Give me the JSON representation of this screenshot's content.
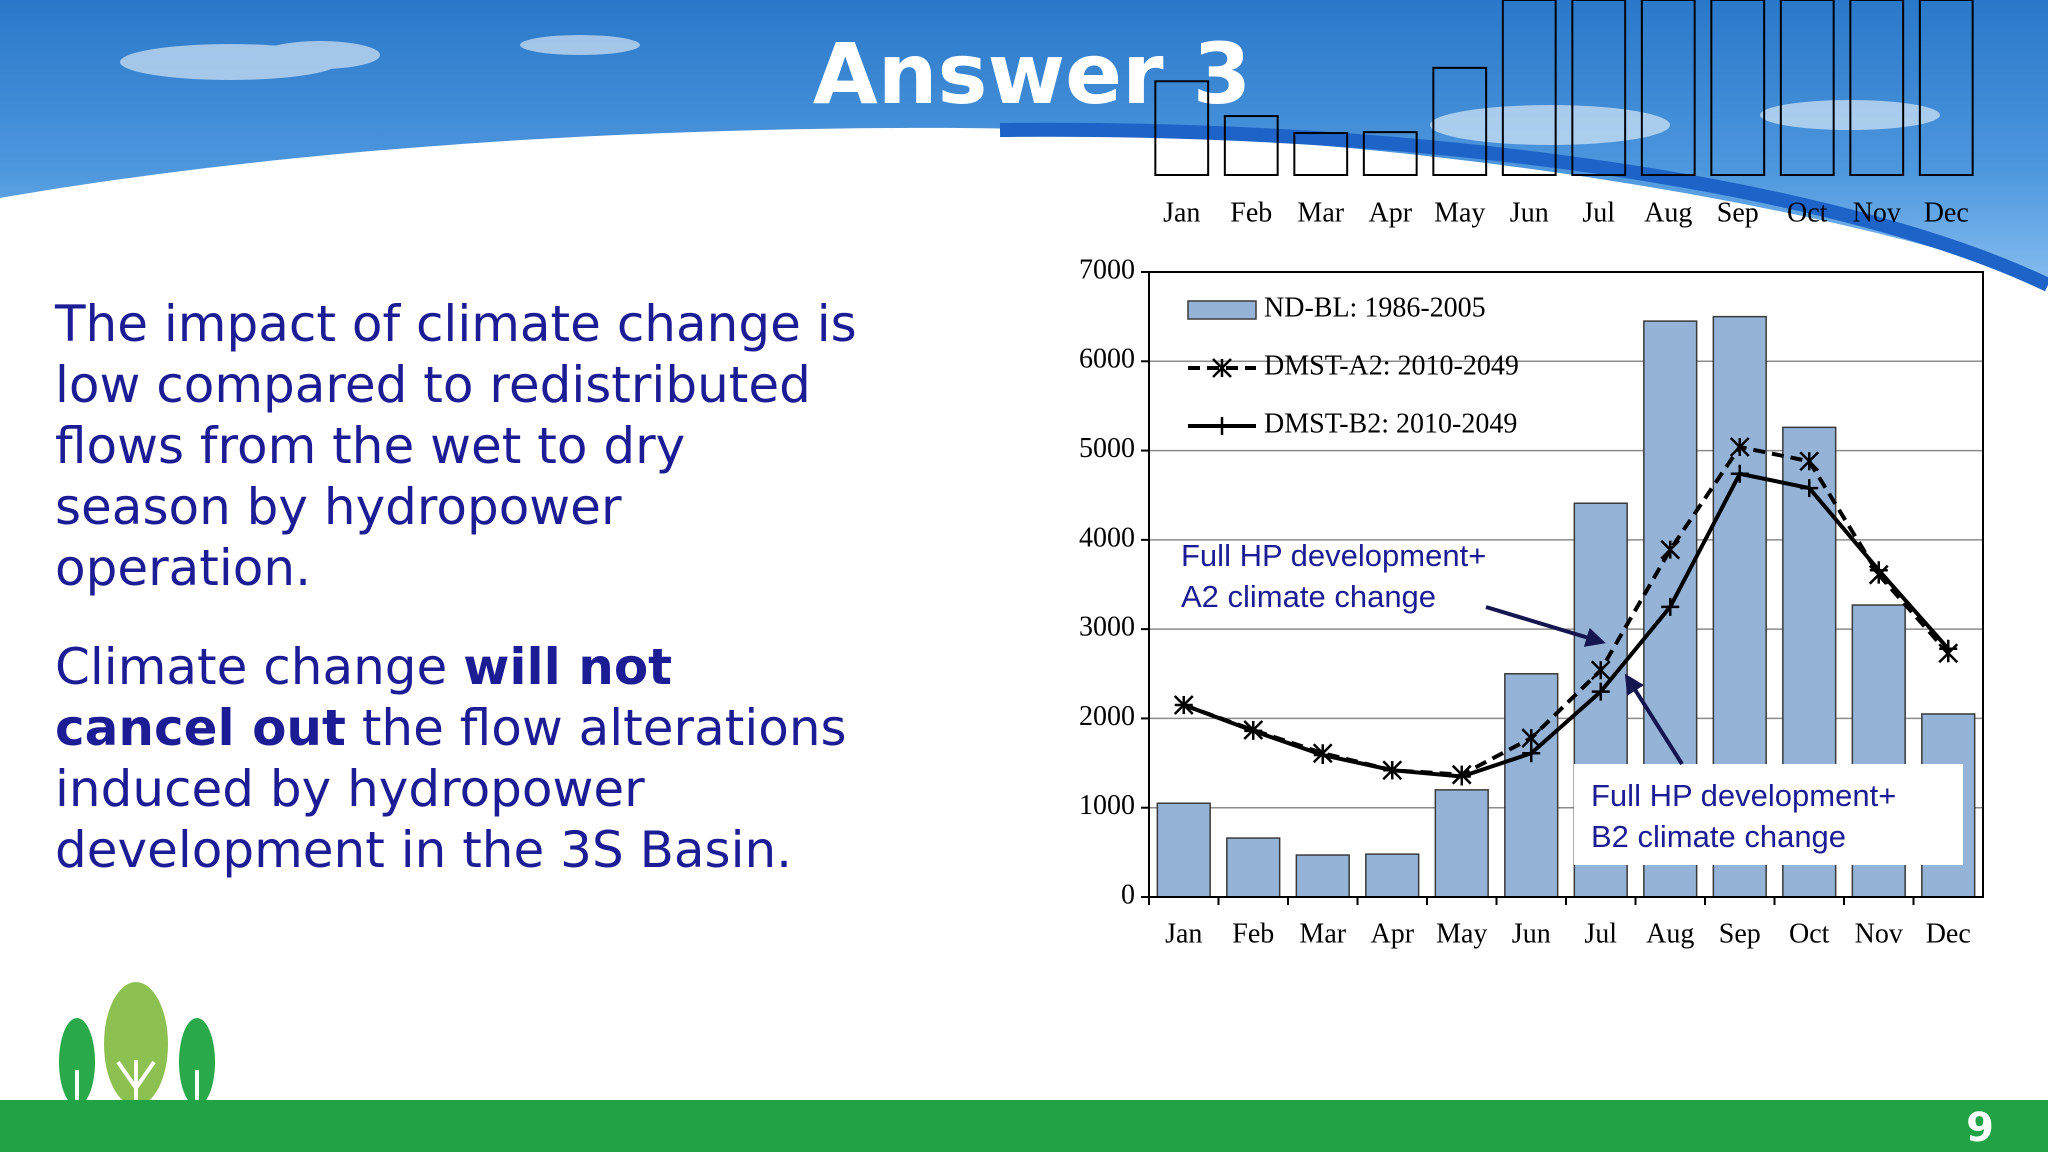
{
  "slide": {
    "title": "Answer 3",
    "paragraphs": [
      {
        "lines": [
          [
            {
              "text": "The impact of climate change is"
            }
          ],
          [
            {
              "text": "low compared to redistributed"
            }
          ],
          [
            {
              "text": "flows from the wet to dry"
            }
          ],
          [
            {
              "text": "season by hydropower"
            }
          ],
          [
            {
              "text": "operation."
            }
          ]
        ]
      },
      {
        "lines": [
          [
            {
              "text": "Climate change "
            },
            {
              "text": "will not",
              "bold": true
            }
          ],
          [
            {
              "text": "cancel out",
              "bold": true
            },
            {
              "text": " the flow alterations"
            }
          ],
          [
            {
              "text": "induced by hydropower"
            }
          ],
          [
            {
              "text": "development in the 3S Basin."
            }
          ]
        ]
      }
    ],
    "page_number": 9
  },
  "chart_data": {
    "type": "combo",
    "categories": [
      "Jan",
      "Feb",
      "Mar",
      "Apr",
      "May",
      "Jun",
      "Jul",
      "Aug",
      "Sep",
      "Oct",
      "Nov",
      "Dec"
    ],
    "series": [
      {
        "name": "ND-BL: 1986-2005",
        "type": "bar",
        "color": "#95b3d7",
        "values": [
          1050,
          660,
          470,
          480,
          1200,
          2500,
          4410,
          6450,
          6500,
          5260,
          3270,
          2050
        ]
      },
      {
        "name": "DMST-A2: 2010-2049",
        "type": "line",
        "dash": true,
        "marker": "x",
        "color": "#000000",
        "values": [
          2150,
          1870,
          1610,
          1420,
          1370,
          1780,
          2540,
          3890,
          5040,
          4880,
          3610,
          2730
        ]
      },
      {
        "name": "DMST-B2: 2010-2049",
        "type": "line",
        "dash": false,
        "marker": "+",
        "color": "#000000",
        "values": [
          2150,
          1860,
          1590,
          1420,
          1350,
          1610,
          2300,
          3250,
          4740,
          4580,
          3660,
          2780
        ]
      }
    ],
    "ylim": [
      0,
      7000
    ],
    "yticks": [
      0,
      1000,
      2000,
      3000,
      4000,
      5000,
      6000,
      7000
    ],
    "grid": true,
    "legend": "top-left",
    "annotations": [
      {
        "lines": [
          "Full HP development+",
          "A2 climate change"
        ]
      },
      {
        "lines": [
          "Full HP development+",
          "B2 climate change"
        ]
      }
    ]
  }
}
